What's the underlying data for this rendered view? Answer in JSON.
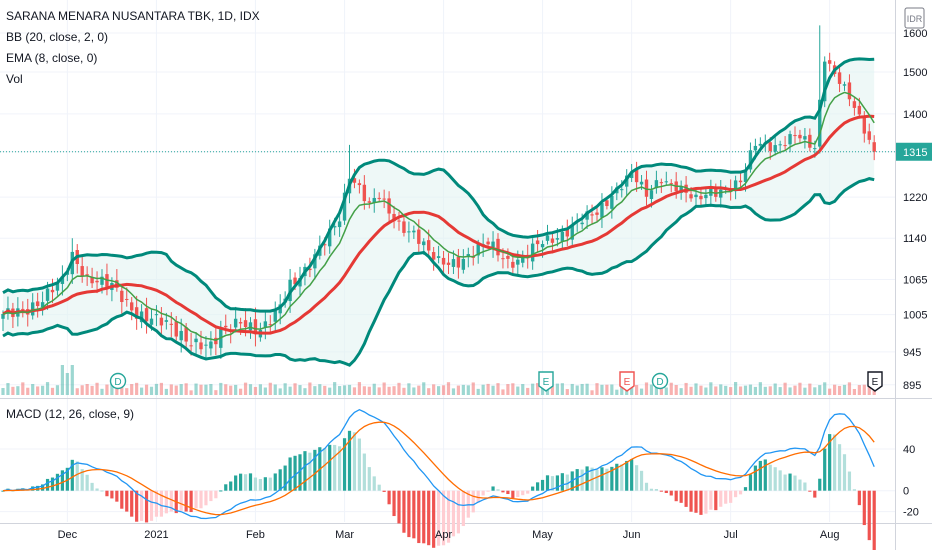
{
  "header": {
    "symbol_title": "SARANA MENARA NUSANTARA TBK, 1D, IDX",
    "bb_label": "BB (20, close, 2, 0)",
    "ema_label": "EMA (8, close, 0)",
    "vol_label": "Vol",
    "macd_label": "MACD (12, 26, close, 9)",
    "currency_badge": "IDR",
    "last_price_tag": "1315"
  },
  "colors": {
    "up": "#26a69a",
    "down": "#ef5350",
    "bb_band": "#00897b",
    "bb_fill": "#e0f2f1",
    "ema": "#e53935",
    "macd_line": "#2196f3",
    "signal_line": "#ff6d00",
    "grid": "#f0f3fa",
    "axis_text": "#131722"
  },
  "chart_data": {
    "type": "candlestick",
    "price_axis": {
      "ticks": [
        895,
        945,
        1005,
        1065,
        1140,
        1220,
        1315,
        1400,
        1500,
        1600
      ],
      "log_scale": true,
      "range": [
        880,
        1640
      ]
    },
    "macd_axis": {
      "ticks": [
        40,
        0,
        -20
      ],
      "range": [
        -30,
        85
      ]
    },
    "time_axis": {
      "labels": [
        "Dec",
        "2021",
        "Feb",
        "Mar",
        "Apr",
        "May",
        "Jun",
        "Jul",
        "Aug"
      ]
    },
    "close_anchors": [
      [
        0,
        1000
      ],
      [
        8,
        1030
      ],
      [
        12,
        1060
      ],
      [
        14,
        1110
      ],
      [
        17,
        1070
      ],
      [
        22,
        1050
      ],
      [
        27,
        1010
      ],
      [
        32,
        990
      ],
      [
        38,
        965
      ],
      [
        42,
        950
      ],
      [
        45,
        980
      ],
      [
        48,
        1000
      ],
      [
        52,
        975
      ],
      [
        55,
        1000
      ],
      [
        58,
        1060
      ],
      [
        62,
        1090
      ],
      [
        65,
        1130
      ],
      [
        68,
        1180
      ],
      [
        70,
        1270
      ],
      [
        72,
        1240
      ],
      [
        74,
        1200
      ],
      [
        76,
        1220
      ],
      [
        78,
        1190
      ],
      [
        80,
        1170
      ],
      [
        83,
        1150
      ],
      [
        86,
        1110
      ],
      [
        88,
        1095
      ],
      [
        92,
        1100
      ],
      [
        95,
        1110
      ],
      [
        98,
        1130
      ],
      [
        102,
        1100
      ],
      [
        105,
        1100
      ],
      [
        108,
        1125
      ],
      [
        112,
        1145
      ],
      [
        116,
        1170
      ],
      [
        120,
        1185
      ],
      [
        124,
        1240
      ],
      [
        127,
        1270
      ],
      [
        130,
        1220
      ],
      [
        133,
        1260
      ],
      [
        136,
        1245
      ],
      [
        140,
        1210
      ],
      [
        143,
        1230
      ],
      [
        146,
        1240
      ],
      [
        149,
        1250
      ],
      [
        152,
        1330
      ],
      [
        156,
        1330
      ],
      [
        160,
        1350
      ],
      [
        164,
        1320
      ],
      [
        166,
        1540
      ],
      [
        168,
        1500
      ],
      [
        170,
        1460
      ],
      [
        172,
        1410
      ],
      [
        174,
        1360
      ],
      [
        176,
        1315
      ]
    ],
    "price_scale_min": 880,
    "price_scale_max": 1640,
    "current_price": 1315,
    "event_markers": [
      {
        "label": "D",
        "type": "dividend"
      },
      {
        "label": "E",
        "type": "earnings"
      },
      {
        "label": "E",
        "type": "earnings"
      },
      {
        "label": "D",
        "type": "dividend"
      },
      {
        "label": "E",
        "type": "earnings"
      }
    ],
    "indicators": [
      "BB (20, close, 2, 0)",
      "EMA (8, close, 0)",
      "Vol",
      "MACD (12, 26, close, 9)"
    ]
  }
}
